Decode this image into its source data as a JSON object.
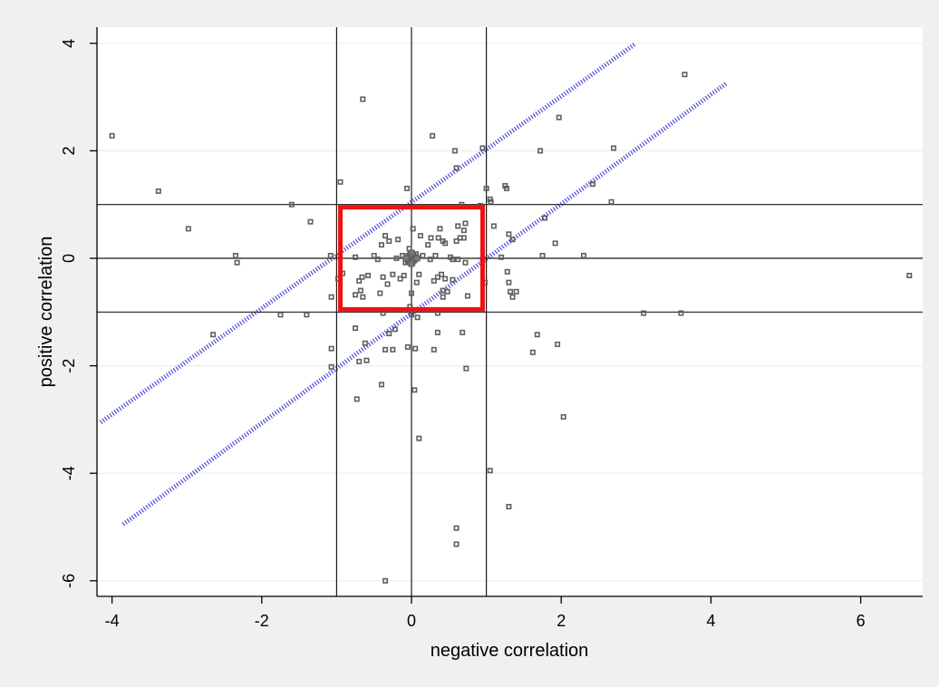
{
  "chart_data": {
    "type": "scatter",
    "title": "",
    "xlabel": "negative correlation",
    "ylabel": "positive correlation",
    "xlim": [
      -4.2,
      6.8
    ],
    "ylim": [
      -6.25,
      4.1
    ],
    "xticks": [
      -4,
      -2,
      0,
      2,
      4,
      6
    ],
    "xtick_labels": [
      "-4",
      "-2",
      "0",
      "2",
      "4",
      "6"
    ],
    "yticks": [
      -6,
      -4,
      -2,
      0,
      2,
      4
    ],
    "ytick_labels": [
      "-6",
      "-4",
      "-2",
      "0",
      "2",
      "4"
    ],
    "grid": "horizontal",
    "legend": "none",
    "reference_lines": {
      "vertical": [
        -1,
        0,
        1
      ],
      "horizontal": [
        -1,
        0,
        1
      ]
    },
    "diagonal_bands": [
      {
        "from": [
          -4.15,
          -3.05
        ],
        "to": [
          2.98,
          3.98
        ]
      },
      {
        "from": [
          -3.85,
          -4.95
        ],
        "to": [
          4.2,
          3.25
        ]
      }
    ],
    "highlight_box": {
      "x": [
        -0.95,
        0.95
      ],
      "y": [
        -0.95,
        0.95
      ]
    },
    "center_cluster": {
      "x": 0,
      "y": 0,
      "label": ""
    },
    "points": [
      [
        -4.0,
        2.28
      ],
      [
        -3.38,
        1.25
      ],
      [
        -2.98,
        0.55
      ],
      [
        -2.65,
        -1.42
      ],
      [
        -2.35,
        0.05
      ],
      [
        -2.33,
        -0.08
      ],
      [
        -1.75,
        -1.05
      ],
      [
        -1.6,
        1.0
      ],
      [
        -1.4,
        -1.05
      ],
      [
        -1.35,
        0.68
      ],
      [
        -1.08,
        0.05
      ],
      [
        -1.07,
        -0.72
      ],
      [
        -1.07,
        -1.68
      ],
      [
        -1.07,
        -2.02
      ],
      [
        -0.98,
        -0.38
      ],
      [
        -0.95,
        1.42
      ],
      [
        -0.92,
        -0.28
      ],
      [
        -0.75,
        0.02
      ],
      [
        -0.75,
        -0.68
      ],
      [
        -0.75,
        -1.3
      ],
      [
        -0.73,
        -2.62
      ],
      [
        -0.7,
        -0.42
      ],
      [
        -0.7,
        -1.92
      ],
      [
        -0.68,
        -0.6
      ],
      [
        -0.66,
        -0.35
      ],
      [
        -0.65,
        2.96
      ],
      [
        -0.65,
        -0.72
      ],
      [
        -0.62,
        -1.58
      ],
      [
        -0.6,
        -1.9
      ],
      [
        -0.58,
        -0.32
      ],
      [
        -0.5,
        0.05
      ],
      [
        -0.45,
        -0.02
      ],
      [
        -0.42,
        -0.65
      ],
      [
        -0.4,
        0.25
      ],
      [
        -0.4,
        -2.35
      ],
      [
        -0.38,
        -0.35
      ],
      [
        -0.38,
        -1.02
      ],
      [
        -0.35,
        -1.7
      ],
      [
        -0.35,
        0.42
      ],
      [
        -0.35,
        -6.0
      ],
      [
        -0.32,
        -0.48
      ],
      [
        -0.3,
        0.32
      ],
      [
        -0.3,
        -1.4
      ],
      [
        -0.25,
        -0.3
      ],
      [
        -0.25,
        -1.7
      ],
      [
        -0.22,
        -1.32
      ],
      [
        -0.2,
        0.0
      ],
      [
        -0.18,
        0.35
      ],
      [
        -0.15,
        -0.38
      ],
      [
        -0.12,
        0.05
      ],
      [
        -0.1,
        -0.32
      ],
      [
        -0.08,
        -0.08
      ],
      [
        -0.06,
        1.3
      ],
      [
        -0.05,
        -0.05
      ],
      [
        -0.05,
        -1.65
      ],
      [
        -0.04,
        0.05
      ],
      [
        -0.03,
        0.18
      ],
      [
        -0.02,
        -0.9
      ],
      [
        0.0,
        -0.65
      ],
      [
        0.0,
        -1.05
      ],
      [
        0.02,
        0.55
      ],
      [
        0.03,
        -0.98
      ],
      [
        0.04,
        -2.45
      ],
      [
        0.05,
        -1.68
      ],
      [
        0.06,
        0.08
      ],
      [
        0.07,
        -0.45
      ],
      [
        0.08,
        -1.1
      ],
      [
        0.1,
        -0.3
      ],
      [
        0.1,
        -3.35
      ],
      [
        0.12,
        0.42
      ],
      [
        0.15,
        0.05
      ],
      [
        0.22,
        0.25
      ],
      [
        0.25,
        -0.02
      ],
      [
        0.26,
        0.38
      ],
      [
        0.28,
        2.28
      ],
      [
        0.3,
        -0.42
      ],
      [
        0.3,
        -1.7
      ],
      [
        0.32,
        0.05
      ],
      [
        0.35,
        -0.35
      ],
      [
        0.35,
        -1.38
      ],
      [
        0.35,
        -1.02
      ],
      [
        0.36,
        0.38
      ],
      [
        0.38,
        0.55
      ],
      [
        0.4,
        -0.3
      ],
      [
        0.42,
        0.32
      ],
      [
        0.42,
        -0.6
      ],
      [
        0.42,
        -0.72
      ],
      [
        0.45,
        0.28
      ],
      [
        0.45,
        -0.38
      ],
      [
        0.48,
        -0.62
      ],
      [
        0.52,
        0.02
      ],
      [
        0.55,
        -0.02
      ],
      [
        0.55,
        -0.4
      ],
      [
        0.58,
        2.0
      ],
      [
        0.6,
        1.68
      ],
      [
        0.6,
        0.32
      ],
      [
        0.6,
        -5.02
      ],
      [
        0.6,
        -5.32
      ],
      [
        0.62,
        0.6
      ],
      [
        0.62,
        -0.02
      ],
      [
        0.65,
        0.38
      ],
      [
        0.67,
        1.0
      ],
      [
        0.68,
        -1.38
      ],
      [
        0.7,
        0.52
      ],
      [
        0.7,
        0.38
      ],
      [
        0.72,
        0.65
      ],
      [
        0.72,
        -0.08
      ],
      [
        0.73,
        -2.05
      ],
      [
        0.75,
        -0.7
      ],
      [
        0.92,
        0.98
      ],
      [
        0.95,
        -0.02
      ],
      [
        0.98,
        -0.45
      ],
      [
        0.95,
        2.05
      ],
      [
        1.0,
        1.3
      ],
      [
        1.05,
        1.1
      ],
      [
        1.06,
        1.05
      ],
      [
        1.05,
        -3.95
      ],
      [
        1.1,
        0.6
      ],
      [
        1.2,
        0.02
      ],
      [
        1.25,
        1.35
      ],
      [
        1.27,
        1.3
      ],
      [
        1.28,
        -0.25
      ],
      [
        1.3,
        -0.45
      ],
      [
        1.3,
        0.45
      ],
      [
        1.3,
        -4.62
      ],
      [
        1.32,
        -0.62
      ],
      [
        1.35,
        0.35
      ],
      [
        1.35,
        -0.72
      ],
      [
        1.4,
        -0.62
      ],
      [
        1.62,
        -1.75
      ],
      [
        1.68,
        -1.42
      ],
      [
        1.72,
        2.0
      ],
      [
        1.75,
        0.05
      ],
      [
        1.78,
        0.75
      ],
      [
        1.92,
        0.28
      ],
      [
        1.95,
        -1.6
      ],
      [
        1.97,
        2.62
      ],
      [
        2.03,
        -2.95
      ],
      [
        2.3,
        0.05
      ],
      [
        2.42,
        1.38
      ],
      [
        2.67,
        1.05
      ],
      [
        2.7,
        2.05
      ],
      [
        3.1,
        -1.02
      ],
      [
        3.6,
        -1.02
      ],
      [
        3.65,
        3.42
      ],
      [
        6.65,
        -0.32
      ]
    ]
  }
}
